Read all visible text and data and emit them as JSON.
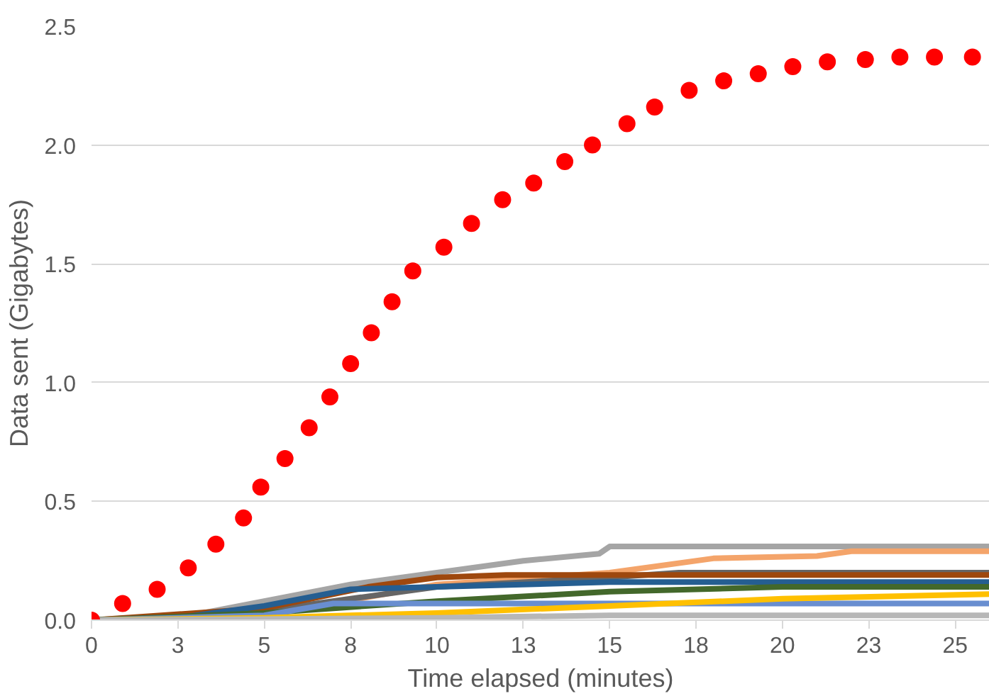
{
  "chart_data": {
    "type": "line",
    "xlabel": "Time elapsed (minutes)",
    "ylabel": "Data sent (Gigabytes)",
    "xlim": [
      0,
      26
    ],
    "ylim": [
      0,
      2.5
    ],
    "xticks": [
      0,
      {
        "value": 2.5,
        "label": "3"
      },
      5,
      {
        "value": 7.5,
        "label": "8"
      },
      10,
      {
        "value": 12.5,
        "label": "13"
      },
      15,
      {
        "value": 17.5,
        "label": "18"
      },
      20,
      {
        "value": 22.5,
        "label": "23"
      },
      25
    ],
    "yticks": [
      {
        "value": 0,
        "label": "0.0"
      },
      0.5,
      {
        "value": 1,
        "label": "1.0"
      },
      1.5,
      {
        "value": 2,
        "label": "2.0"
      },
      2.5
    ],
    "grid": "y",
    "line_style": "solid",
    "series": [
      {
        "color": "#a5a5a5",
        "x": [
          0,
          2.5,
          5,
          7.5,
          10,
          12.5,
          14.7,
          15,
          26
        ],
        "values": [
          0,
          0.01,
          0.08,
          0.15,
          0.2,
          0.25,
          0.28,
          0.31,
          0.31
        ]
      },
      {
        "color": "#f4a46a",
        "x": [
          0,
          4,
          7,
          10,
          15,
          18,
          21,
          22,
          26
        ],
        "values": [
          0,
          0.01,
          0.07,
          0.15,
          0.2,
          0.26,
          0.27,
          0.29,
          0.29
        ]
      },
      {
        "color": "#666666",
        "x": [
          0,
          5,
          10,
          15,
          17,
          26
        ],
        "values": [
          0,
          0.04,
          0.14,
          0.18,
          0.2,
          0.2
        ]
      },
      {
        "color": "#9e480e",
        "x": [
          0,
          5,
          8,
          10,
          12,
          26
        ],
        "values": [
          0,
          0.05,
          0.14,
          0.18,
          0.19,
          0.19
        ]
      },
      {
        "color": "#255e91",
        "x": [
          0,
          2.5,
          5,
          7.5,
          10,
          15,
          20,
          26
        ],
        "values": [
          0,
          0.01,
          0.06,
          0.13,
          0.14,
          0.16,
          0.16,
          0.16
        ]
      },
      {
        "color": "#43682b",
        "x": [
          0,
          5,
          10,
          15,
          20,
          26
        ],
        "values": [
          0,
          0.03,
          0.08,
          0.12,
          0.14,
          0.14
        ]
      },
      {
        "color": "#698ed0",
        "x": [
          0,
          5,
          7,
          13,
          26
        ],
        "values": [
          0,
          0.02,
          0.07,
          0.07,
          0.07
        ]
      },
      {
        "color": "#ffc000",
        "x": [
          0,
          5,
          10,
          15,
          20,
          26
        ],
        "values": [
          0,
          0.01,
          0.03,
          0.06,
          0.09,
          0.11
        ]
      },
      {
        "color": "#b7b7b7",
        "x": [
          0,
          10,
          15,
          26
        ],
        "values": [
          0,
          0.01,
          0.02,
          0.02
        ]
      },
      {
        "type": "scatter",
        "marker": "circle",
        "color": "#ff0000",
        "x": [
          0,
          0.9,
          1.9,
          2.8,
          3.6,
          4.4,
          4.9,
          5.6,
          6.3,
          6.9,
          7.5,
          8.1,
          8.7,
          9.3,
          10.2,
          11.0,
          11.9,
          12.8,
          13.7,
          14.5,
          15.5,
          16.3,
          17.3,
          18.3,
          19.3,
          20.3,
          21.3,
          22.4,
          23.4,
          24.4,
          25.5
        ],
        "values": [
          0,
          0.07,
          0.13,
          0.22,
          0.32,
          0.43,
          0.56,
          0.68,
          0.81,
          0.94,
          1.08,
          1.21,
          1.34,
          1.47,
          1.57,
          1.67,
          1.77,
          1.84,
          1.93,
          2.0,
          2.09,
          2.16,
          2.23,
          2.27,
          2.3,
          2.33,
          2.35,
          2.36,
          2.37,
          2.37,
          2.37
        ]
      }
    ]
  }
}
